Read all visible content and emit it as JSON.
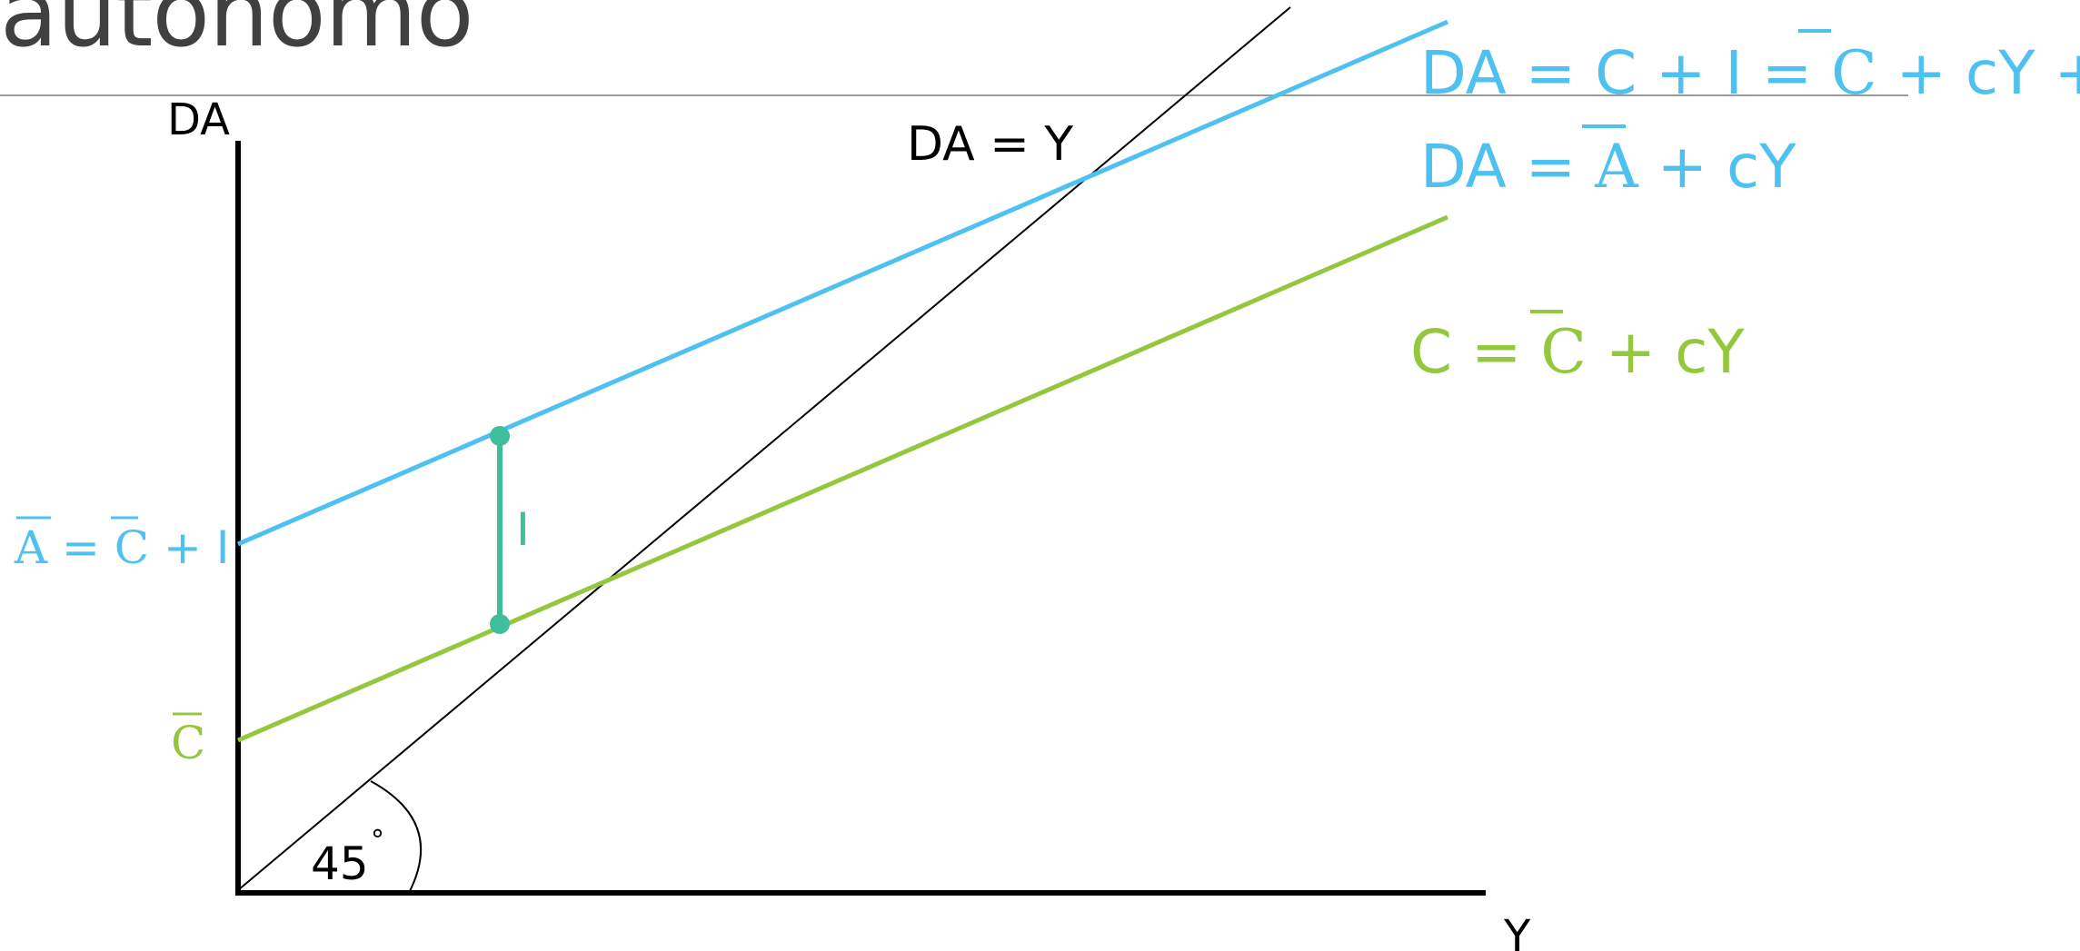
{
  "title": "autonomo",
  "axes": {
    "y_label": "DA",
    "x_label": "Y"
  },
  "angle_label": "45",
  "degree_symbol": "°",
  "lines": {
    "identity": {
      "label": "DA = Y",
      "color": "#000000"
    },
    "aggregate_demand": {
      "color": "#4FC1F0"
    },
    "consumption": {
      "color": "#93C83E"
    }
  },
  "investment": {
    "label": "I",
    "color": "#3EBE9A"
  },
  "equations": {
    "da_1": {
      "lhs": "DA = C + I = ",
      "bar": "C",
      "rhs": " + cY + I"
    },
    "da_2": {
      "lhs": "DA = ",
      "bar": "A",
      "rhs": " + cY"
    },
    "c": {
      "lhs": "C = ",
      "bar": "C",
      "rhs": " + cY"
    }
  },
  "intercepts": {
    "a_bar": {
      "bar1": "A",
      "mid": " = ",
      "bar2": "C",
      "rhs": " + I"
    },
    "c_bar": {
      "bar": "C"
    }
  }
}
